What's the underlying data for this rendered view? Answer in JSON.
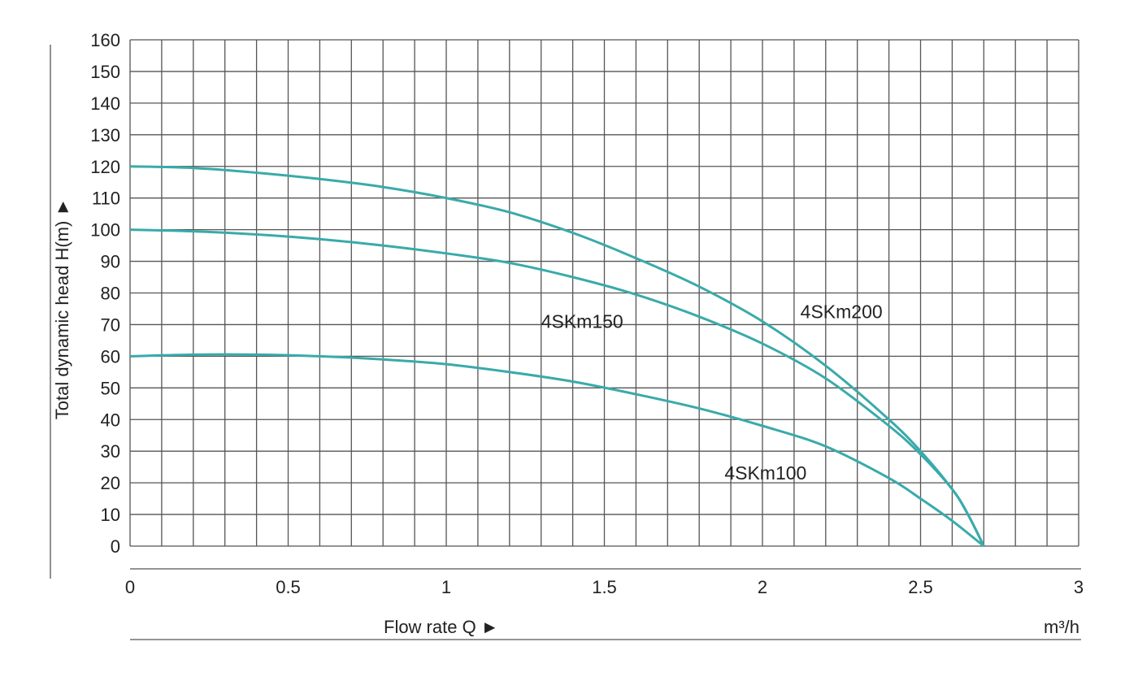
{
  "chart_data": {
    "type": "line",
    "title": "",
    "xlabel": "Flow rate Q ►",
    "ylabel": "Total dynamic head H(m) ►",
    "x_unit": "m³/h",
    "xlim": [
      0,
      3
    ],
    "ylim": [
      0,
      160
    ],
    "x_grid_step": 0.1,
    "y_grid_step": 10,
    "x_ticks": [
      "0",
      "0.5",
      "1",
      "1.5",
      "2",
      "2.5",
      "3"
    ],
    "x_tick_values": [
      0,
      0.5,
      1,
      1.5,
      2,
      2.5,
      3
    ],
    "y_ticks": [
      "0",
      "10",
      "20",
      "30",
      "40",
      "50",
      "60",
      "70",
      "80",
      "90",
      "100",
      "110",
      "120",
      "130",
      "140",
      "150",
      "160"
    ],
    "y_tick_values": [
      0,
      10,
      20,
      30,
      40,
      50,
      60,
      70,
      80,
      90,
      100,
      110,
      120,
      130,
      140,
      150,
      160
    ],
    "grid": true,
    "line_color": "#3aaaaa",
    "series": [
      {
        "name": "4SKm200",
        "label_at": [
          2.12,
          72
        ],
        "x": [
          0,
          0.2,
          0.4,
          0.6,
          0.8,
          1.0,
          1.2,
          1.4,
          1.6,
          1.8,
          2.0,
          2.2,
          2.4,
          2.5,
          2.6,
          2.65,
          2.7
        ],
        "y": [
          120,
          119.5,
          118,
          116,
          113.5,
          110,
          105.5,
          99,
          91,
          82,
          71,
          57,
          40,
          30,
          18,
          10,
          0
        ]
      },
      {
        "name": "4SKm150",
        "label_at": [
          1.3,
          69
        ],
        "x": [
          0,
          0.2,
          0.4,
          0.6,
          0.8,
          1.0,
          1.2,
          1.4,
          1.6,
          1.8,
          2.0,
          2.2,
          2.4,
          2.5,
          2.6,
          2.65,
          2.7
        ],
        "y": [
          100,
          99.5,
          98.5,
          97,
          95,
          92.5,
          89.5,
          85,
          79.5,
          72.5,
          64,
          53,
          38,
          29,
          18,
          10,
          0
        ]
      },
      {
        "name": "4SKm100",
        "label_at": [
          1.88,
          21
        ],
        "x": [
          0,
          0.2,
          0.4,
          0.6,
          0.8,
          1.0,
          1.2,
          1.4,
          1.6,
          1.8,
          2.0,
          2.2,
          2.4,
          2.5,
          2.6,
          2.7
        ],
        "y": [
          60,
          60.5,
          60.5,
          60,
          59,
          57.5,
          55,
          52,
          48,
          43.5,
          38,
          31.5,
          21.5,
          15,
          8,
          0
        ]
      }
    ]
  }
}
